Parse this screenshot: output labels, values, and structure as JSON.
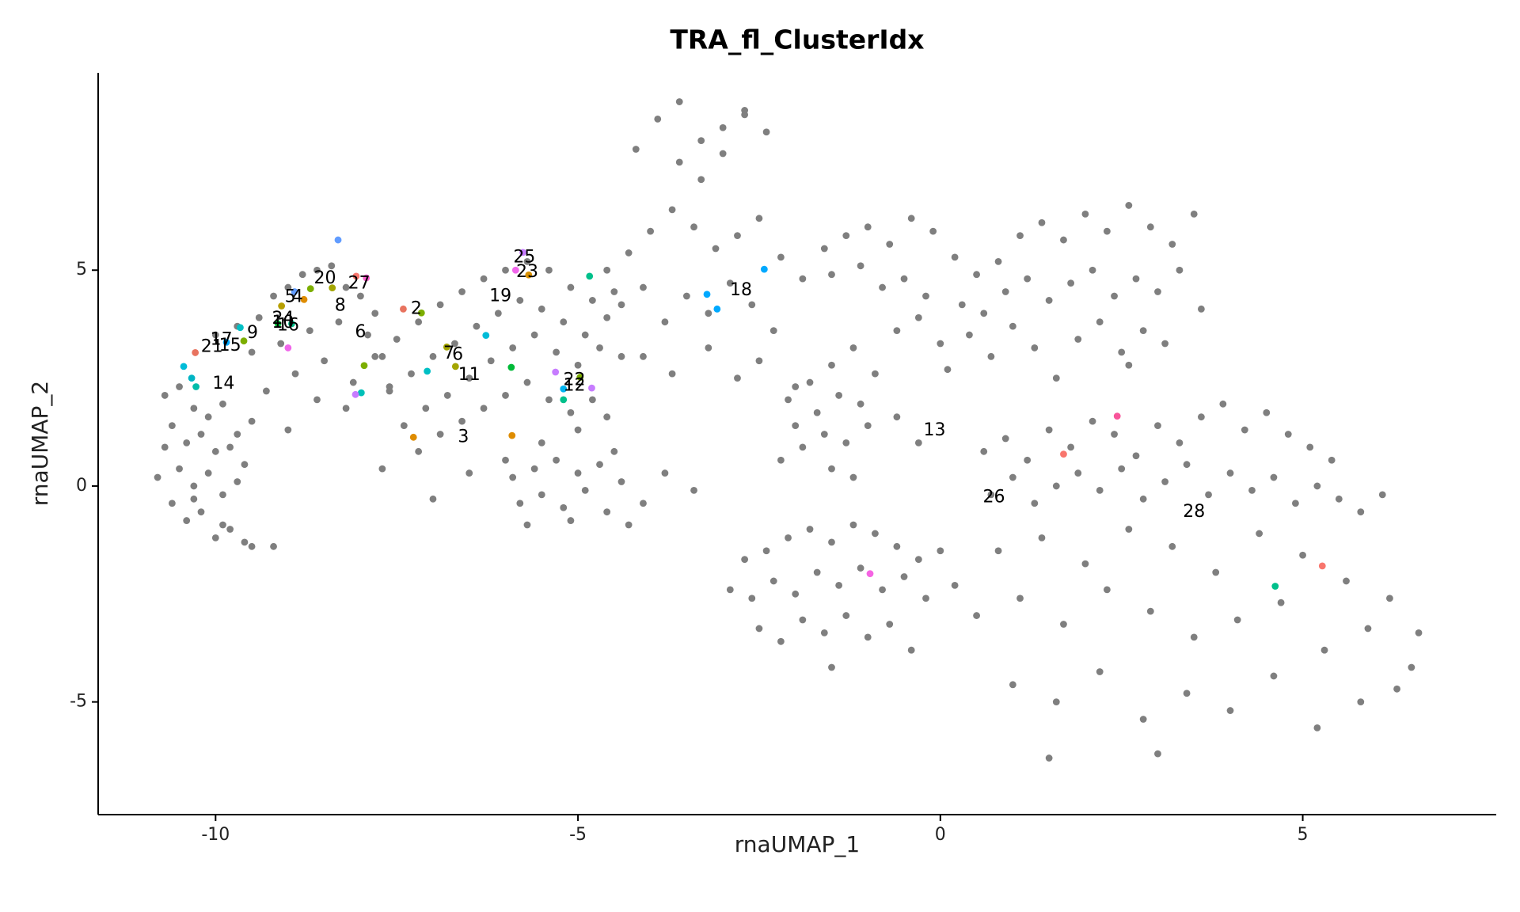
{
  "chart_data": {
    "type": "scatter",
    "title": "TRA_fl_ClusterIdx",
    "xlabel": "rnaUMAP_1",
    "ylabel": "rnaUMAP_2",
    "xlim": [
      -11.62,
      7.67
    ],
    "ylim": [
      -7.61,
      9.57
    ],
    "xticks": [
      -10,
      -5,
      0,
      5
    ],
    "yticks": [
      -5,
      0,
      5
    ],
    "grid": false,
    "series": [
      {
        "color": "#7f7f7f",
        "x": [
          -10.7,
          -10.5,
          -10.3,
          -10.1,
          -9.9,
          -9.7,
          -9.5,
          -10.6,
          -10.4,
          -10.2,
          -10.0,
          -9.8,
          -9.6,
          -10.8,
          -10.5,
          -10.3,
          -10.1,
          -9.9,
          -9.7,
          -10.6,
          -10.2,
          -9.9,
          -10.4,
          -10.0,
          -9.6,
          -10.7,
          -10.3,
          -9.5,
          -9.8,
          -9.2,
          -10.0,
          -9.7,
          -9.4,
          -9.2,
          -9.0,
          -8.8,
          -8.6,
          -8.4,
          -8.2,
          -8.0,
          -7.8,
          -9.5,
          -9.1,
          -8.7,
          -8.3,
          -7.9,
          -7.7,
          -8.9,
          -8.5,
          -8.1,
          -9.3,
          -8.6,
          -8.2,
          -7.6,
          -9.0,
          -7.8,
          -7.5,
          -7.2,
          -6.9,
          -6.6,
          -6.3,
          -6.0,
          -5.7,
          -5.4,
          -5.1,
          -4.8,
          -4.5,
          -7.6,
          -7.3,
          -7.0,
          -6.7,
          -6.4,
          -6.1,
          -5.8,
          -5.5,
          -5.2,
          -4.9,
          -4.6,
          -7.4,
          -7.1,
          -6.8,
          -6.5,
          -6.2,
          -5.9,
          -5.6,
          -5.3,
          -5.0,
          -4.7,
          -4.4,
          -7.7,
          -7.2,
          -6.9,
          -6.6,
          -6.3,
          -6.0,
          -5.7,
          -5.4,
          -5.1,
          -4.8,
          -7.0,
          -6.5,
          -6.0,
          -5.5,
          -5.0,
          -4.6,
          -5.9,
          -5.6,
          -5.3,
          -5.0,
          -4.7,
          -4.4,
          -4.1,
          -5.8,
          -5.5,
          -5.2,
          -4.9,
          -4.6,
          -4.3,
          -5.7,
          -5.1,
          -4.5,
          -3.8,
          -3.4,
          -4.6,
          -4.3,
          -4.0,
          -3.7,
          -3.4,
          -3.1,
          -2.8,
          -2.5,
          -2.2,
          -1.9,
          -4.4,
          -4.1,
          -3.8,
          -3.5,
          -3.2,
          -2.9,
          -2.6,
          -2.3,
          -3.6,
          -3.3,
          -3.0,
          -2.7,
          -2.4,
          -4.2,
          -3.9,
          -3.6,
          -3.3,
          -3.0,
          -2.7,
          -4.1,
          -3.7,
          -3.2,
          -2.8,
          -2.5,
          -2.0,
          -1.6,
          -1.3,
          -1.0,
          -0.7,
          -0.4,
          -0.1,
          0.2,
          0.5,
          0.8,
          1.1,
          1.4,
          1.7,
          2.0,
          2.3,
          2.6,
          2.9,
          3.2,
          3.5,
          -1.5,
          -1.1,
          -0.8,
          -0.5,
          -0.2,
          0.3,
          0.6,
          0.9,
          1.2,
          1.5,
          1.8,
          2.1,
          2.4,
          2.7,
          3.0,
          3.3,
          3.6,
          -0.6,
          -0.3,
          0.0,
          0.4,
          0.7,
          1.0,
          1.3,
          1.9,
          2.2,
          2.5,
          2.8,
          3.1,
          0.1,
          1.6,
          2.6,
          -2.1,
          -1.8,
          -1.5,
          -1.2,
          -0.9,
          -2.0,
          -1.7,
          -1.4,
          -1.1,
          -1.9,
          -1.6,
          -1.3,
          -1.0,
          -2.2,
          -1.5,
          -1.2,
          -0.6,
          -0.3,
          0.6,
          0.9,
          1.2,
          1.5,
          1.8,
          2.1,
          2.4,
          2.7,
          3.0,
          3.3,
          3.6,
          3.9,
          4.2,
          4.5,
          4.8,
          5.1,
          5.4,
          0.7,
          1.0,
          1.3,
          1.6,
          1.9,
          2.2,
          2.5,
          2.8,
          3.1,
          3.4,
          3.7,
          4.0,
          4.3,
          4.6,
          4.9,
          5.2,
          5.5,
          5.8,
          6.1,
          0.8,
          1.4,
          2.0,
          2.6,
          3.2,
          3.8,
          4.4,
          5.0,
          5.6,
          6.2,
          6.6,
          0.5,
          1.1,
          1.7,
          2.3,
          2.9,
          3.5,
          4.1,
          4.7,
          5.3,
          5.9,
          6.5,
          1.0,
          1.6,
          2.2,
          2.8,
          3.4,
          4.0,
          4.6,
          5.2,
          5.8,
          6.3,
          1.5,
          3.0,
          -2.7,
          -2.4,
          -2.1,
          -1.8,
          -1.5,
          -1.2,
          -0.9,
          -0.6,
          -0.3,
          0.0,
          -2.6,
          -2.3,
          -2.0,
          -1.7,
          -1.4,
          -1.1,
          -0.8,
          -0.5,
          -0.2,
          0.2,
          -2.5,
          -2.2,
          -1.9,
          -1.6,
          -1.3,
          -1.0,
          -0.7,
          -2.9,
          -1.5,
          -0.4
        ],
        "values": [
          2.1,
          2.3,
          1.8,
          1.6,
          1.9,
          1.2,
          1.5,
          1.4,
          1.0,
          1.2,
          0.8,
          0.9,
          0.5,
          0.2,
          0.4,
          0.0,
          0.3,
          -0.2,
          0.1,
          -0.4,
          -0.6,
          -0.9,
          -0.8,
          -1.2,
          -1.3,
          0.9,
          -0.3,
          -1.4,
          -1.0,
          -1.4,
          3.5,
          3.7,
          3.9,
          4.4,
          4.6,
          4.9,
          5.0,
          5.1,
          4.6,
          4.4,
          4.0,
          3.1,
          3.3,
          3.6,
          3.8,
          3.5,
          3.0,
          2.6,
          2.9,
          2.4,
          2.2,
          2.0,
          1.8,
          2.3,
          1.3,
          3.0,
          3.4,
          3.8,
          4.2,
          4.5,
          4.8,
          5.0,
          5.2,
          5.0,
          4.6,
          4.3,
          4.5,
          2.2,
          2.6,
          3.0,
          3.3,
          3.7,
          4.0,
          4.3,
          4.1,
          3.8,
          3.5,
          3.9,
          1.4,
          1.8,
          2.1,
          2.5,
          2.9,
          3.2,
          3.5,
          3.1,
          2.8,
          3.2,
          3.0,
          0.4,
          0.8,
          1.2,
          1.5,
          1.8,
          2.1,
          2.4,
          2.0,
          1.7,
          2.0,
          -0.3,
          0.3,
          0.6,
          1.0,
          1.3,
          1.6,
          0.2,
          0.4,
          0.6,
          0.3,
          0.5,
          0.1,
          -0.4,
          -0.4,
          -0.2,
          -0.5,
          -0.1,
          -0.6,
          -0.9,
          -0.9,
          -0.8,
          0.8,
          0.3,
          -0.1,
          5.0,
          5.4,
          5.9,
          6.4,
          6.0,
          5.5,
          5.8,
          6.2,
          5.3,
          4.8,
          4.2,
          4.6,
          3.8,
          4.4,
          4.0,
          4.7,
          4.2,
          3.6,
          7.5,
          8.0,
          8.3,
          8.6,
          8.2,
          7.8,
          8.5,
          8.9,
          7.1,
          7.7,
          8.7,
          3.0,
          2.6,
          3.2,
          2.5,
          2.9,
          2.3,
          5.5,
          5.8,
          6.0,
          5.6,
          6.2,
          5.9,
          5.3,
          4.9,
          5.2,
          5.8,
          6.1,
          5.7,
          6.3,
          5.9,
          6.5,
          6.0,
          5.6,
          6.3,
          4.9,
          5.1,
          4.6,
          4.8,
          4.4,
          4.2,
          4.0,
          4.5,
          4.8,
          4.3,
          4.7,
          5.0,
          4.4,
          4.8,
          4.5,
          5.0,
          4.1,
          3.6,
          3.9,
          3.3,
          3.5,
          3.0,
          3.7,
          3.2,
          3.4,
          3.8,
          3.1,
          3.6,
          3.3,
          2.7,
          2.5,
          2.8,
          2.0,
          2.4,
          2.8,
          3.2,
          2.6,
          1.4,
          1.7,
          2.1,
          1.9,
          0.9,
          1.2,
          1.0,
          1.4,
          0.6,
          0.4,
          0.2,
          1.6,
          1.0,
          0.8,
          1.1,
          0.6,
          1.3,
          0.9,
          1.5,
          1.2,
          0.7,
          1.4,
          1.0,
          1.6,
          1.9,
          1.3,
          1.7,
          1.2,
          0.9,
          0.6,
          -0.2,
          0.2,
          -0.4,
          0.0,
          0.3,
          -0.1,
          0.4,
          -0.3,
          0.1,
          0.5,
          -0.2,
          0.3,
          -0.1,
          0.2,
          -0.4,
          0.0,
          -0.3,
          -0.6,
          -0.2,
          -1.5,
          -1.2,
          -1.8,
          -1.0,
          -1.4,
          -2.0,
          -1.1,
          -1.6,
          -2.2,
          -2.6,
          -3.4,
          -3.0,
          -2.6,
          -3.2,
          -2.4,
          -2.9,
          -3.5,
          -3.1,
          -2.7,
          -3.8,
          -3.3,
          -4.2,
          -4.6,
          -5.0,
          -4.3,
          -5.4,
          -4.8,
          -5.2,
          -4.4,
          -5.6,
          -5.0,
          -4.7,
          -6.3,
          -6.2,
          -1.7,
          -1.5,
          -1.2,
          -1.0,
          -1.3,
          -0.9,
          -1.1,
          -1.4,
          -1.7,
          -1.5,
          -2.6,
          -2.2,
          -2.5,
          -2.0,
          -2.3,
          -1.9,
          -2.4,
          -2.1,
          -2.6,
          -2.3,
          -3.3,
          -3.6,
          -3.1,
          -3.4,
          -3.0,
          -3.5,
          -3.2,
          -2.4,
          -4.2,
          -3.8
        ]
      },
      {
        "x": [
          -10.28,
          -10.44,
          -10.27,
          -10.33,
          -9.66,
          -9.85,
          -9.61,
          -9.0,
          -9.14,
          -8.95,
          -9.09,
          -8.91,
          -8.78,
          -8.69,
          -8.31,
          -8.39,
          -8.06,
          -7.92,
          -7.95,
          -7.99,
          -8.07,
          -7.41,
          -7.16,
          -7.08,
          -6.81,
          -6.69,
          -7.27,
          -5.91,
          -6.27,
          -5.92,
          -5.86,
          -5.76,
          -5.68,
          -4.84,
          -5.31,
          -5.2,
          -5.2,
          -4.97,
          -4.81,
          -3.22,
          -3.08,
          -2.43,
          2.44,
          1.7,
          -0.97,
          4.62,
          5.27
        ],
        "values": [
          3.09,
          2.77,
          2.3,
          2.5,
          3.67,
          3.33,
          3.36,
          3.2,
          3.76,
          3.76,
          4.17,
          4.5,
          4.32,
          4.57,
          5.7,
          4.59,
          4.86,
          4.82,
          2.79,
          2.16,
          2.12,
          4.1,
          4.01,
          2.66,
          3.22,
          2.77,
          1.13,
          1.17,
          3.49,
          2.75,
          5.0,
          5.41,
          4.89,
          4.86,
          2.64,
          2.25,
          2.0,
          2.52,
          2.27,
          4.44,
          4.1,
          5.02,
          1.62,
          0.74,
          -2.03,
          -2.32,
          -1.85
        ],
        "colors": [
          "#e8735f",
          "#00bcd8",
          "#00bcaa",
          "#00b4c4",
          "#00bfc4",
          "#00a9ff",
          "#7cae00",
          "#f066ea",
          "#00ba38",
          "#00c08b",
          "#b79f00",
          "#619cff",
          "#de8c00",
          "#7cae00",
          "#619cff",
          "#a3a500",
          "#f8766d",
          "#fd61d1",
          "#7cae00",
          "#00c0b8",
          "#c77cff",
          "#e8735f",
          "#7cae00",
          "#00bfc4",
          "#a3a500",
          "#a3a500",
          "#de8c00",
          "#de8c00",
          "#00bcd8",
          "#00ba38",
          "#f066ea",
          "#c77cff",
          "#d89000",
          "#00c08b",
          "#c77cff",
          "#00b4f0",
          "#00c08b",
          "#7cae00",
          "#c77cff",
          "#00a9ff",
          "#00a9ff",
          "#00a9ff",
          "#f8559a",
          "#f8766d",
          "#f564e3",
          "#00c08b",
          "#f8766d"
        ]
      }
    ],
    "labels": [
      {
        "text": "25",
        "x": -5.74,
        "y": 5.29
      },
      {
        "text": "23",
        "x": -5.7,
        "y": 4.95
      },
      {
        "text": "20",
        "x": -8.49,
        "y": 4.8
      },
      {
        "text": "27",
        "x": -8.02,
        "y": 4.68
      },
      {
        "text": "5",
        "x": -8.97,
        "y": 4.37
      },
      {
        "text": "4",
        "x": -8.87,
        "y": 4.37
      },
      {
        "text": "19",
        "x": -6.07,
        "y": 4.39
      },
      {
        "text": "18",
        "x": -2.75,
        "y": 4.53
      },
      {
        "text": "2",
        "x": -7.23,
        "y": 4.1
      },
      {
        "text": "8",
        "x": -8.28,
        "y": 4.17
      },
      {
        "text": "24",
        "x": -9.07,
        "y": 3.87
      },
      {
        "text": "10",
        "x": -9.07,
        "y": 3.78
      },
      {
        "text": "16",
        "x": -9.0,
        "y": 3.71
      },
      {
        "text": "6",
        "x": -8.0,
        "y": 3.56
      },
      {
        "text": "9",
        "x": -9.49,
        "y": 3.54
      },
      {
        "text": "17",
        "x": -9.92,
        "y": 3.38
      },
      {
        "text": "21",
        "x": -10.05,
        "y": 3.22
      },
      {
        "text": "15",
        "x": -9.8,
        "y": 3.24
      },
      {
        "text": "7",
        "x": -6.78,
        "y": 3.06
      },
      {
        "text": "6",
        "x": -6.66,
        "y": 3.03
      },
      {
        "text": "11",
        "x": -6.5,
        "y": 2.57
      },
      {
        "text": "22",
        "x": -5.05,
        "y": 2.45
      },
      {
        "text": "12",
        "x": -5.05,
        "y": 2.32
      },
      {
        "text": "14",
        "x": -9.89,
        "y": 2.36
      },
      {
        "text": "3",
        "x": -6.58,
        "y": 1.13
      },
      {
        "text": "13",
        "x": -0.08,
        "y": 1.28
      },
      {
        "text": "26",
        "x": 0.74,
        "y": -0.27
      },
      {
        "text": "28",
        "x": 3.5,
        "y": -0.61
      }
    ]
  }
}
